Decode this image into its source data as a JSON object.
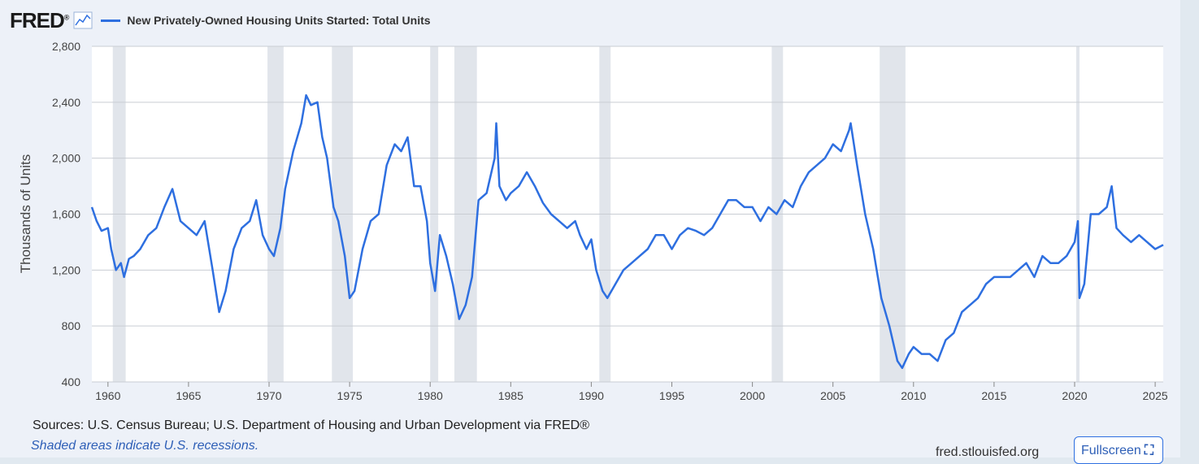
{
  "header": {
    "logo": "FRED",
    "logo_mark": "®",
    "series_title": "New Privately-Owned Housing Units Started: Total Units"
  },
  "footer": {
    "sources": "Sources: U.S. Census Bureau; U.S. Department of Housing and Urban Development via FRED®",
    "recession_note": "Shaded areas indicate U.S. recessions.",
    "url": "fred.stlouisfed.org",
    "fullscreen_label": "Fullscreen"
  },
  "colors": {
    "line": "#2e6fe0",
    "recession": "#e1e5eb",
    "grid": "#c9cdd3",
    "plot_bg": "#ffffff"
  },
  "chart_data": {
    "type": "line",
    "title": "New Privately-Owned Housing Units Started: Total Units",
    "ylabel": "Thousands of Units",
    "xlabel": "",
    "xlim": [
      1959.0,
      2025.5
    ],
    "ylim": [
      400,
      2800
    ],
    "yticks": [
      400,
      800,
      1200,
      1600,
      2000,
      2400,
      2800
    ],
    "ytick_labels": [
      "400",
      "800",
      "1,200",
      "1,600",
      "2,000",
      "2,400",
      "2,800"
    ],
    "xticks": [
      1960,
      1965,
      1970,
      1975,
      1980,
      1985,
      1990,
      1995,
      2000,
      2005,
      2010,
      2015,
      2020,
      2025
    ],
    "recessions": [
      [
        1960.3,
        1961.1
      ],
      [
        1969.9,
        1970.9
      ],
      [
        1973.9,
        1975.2
      ],
      [
        1980.0,
        1980.5
      ],
      [
        1981.5,
        1982.9
      ],
      [
        1990.5,
        1991.2
      ],
      [
        2001.2,
        2001.9
      ],
      [
        2007.9,
        2009.5
      ],
      [
        2020.1,
        2020.3
      ]
    ],
    "series": [
      {
        "name": "New Privately-Owned Housing Units Started: Total Units",
        "x": [
          1959.0,
          1959.3,
          1959.6,
          1960.0,
          1960.2,
          1960.5,
          1960.8,
          1961.0,
          1961.3,
          1961.6,
          1962.0,
          1962.5,
          1963.0,
          1963.5,
          1964.0,
          1964.5,
          1965.0,
          1965.5,
          1966.0,
          1966.5,
          1966.9,
          1967.3,
          1967.8,
          1968.3,
          1968.8,
          1969.2,
          1969.6,
          1970.0,
          1970.3,
          1970.7,
          1971.0,
          1971.5,
          1972.0,
          1972.3,
          1972.6,
          1973.0,
          1973.3,
          1973.6,
          1974.0,
          1974.3,
          1974.7,
          1975.0,
          1975.3,
          1975.8,
          1976.3,
          1976.8,
          1977.3,
          1977.8,
          1978.2,
          1978.6,
          1979.0,
          1979.4,
          1979.8,
          1980.0,
          1980.3,
          1980.6,
          1981.0,
          1981.4,
          1981.8,
          1982.2,
          1982.6,
          1983.0,
          1983.5,
          1984.0,
          1984.1,
          1984.3,
          1984.7,
          1985.0,
          1985.5,
          1986.0,
          1986.5,
          1987.0,
          1987.5,
          1988.0,
          1988.5,
          1989.0,
          1989.3,
          1989.7,
          1990.0,
          1990.3,
          1990.7,
          1991.0,
          1991.5,
          1992.0,
          1992.5,
          1993.0,
          1993.5,
          1994.0,
          1994.5,
          1995.0,
          1995.5,
          1996.0,
          1996.5,
          1997.0,
          1997.5,
          1998.0,
          1998.5,
          1999.0,
          1999.5,
          2000.0,
          2000.5,
          2001.0,
          2001.5,
          2002.0,
          2002.5,
          2003.0,
          2003.5,
          2004.0,
          2004.5,
          2005.0,
          2005.5,
          2006.0,
          2006.1,
          2006.5,
          2007.0,
          2007.5,
          2008.0,
          2008.5,
          2009.0,
          2009.3,
          2009.7,
          2010.0,
          2010.5,
          2011.0,
          2011.5,
          2012.0,
          2012.5,
          2013.0,
          2013.5,
          2014.0,
          2014.5,
          2015.0,
          2015.5,
          2016.0,
          2016.5,
          2017.0,
          2017.5,
          2018.0,
          2018.5,
          2019.0,
          2019.5,
          2020.0,
          2020.2,
          2020.3,
          2020.6,
          2021.0,
          2021.5,
          2022.0,
          2022.3,
          2022.6,
          2023.0,
          2023.5,
          2024.0,
          2024.5,
          2025.0,
          2025.5
        ],
        "values": [
          1650,
          1550,
          1480,
          1500,
          1350,
          1200,
          1250,
          1150,
          1280,
          1300,
          1350,
          1450,
          1500,
          1650,
          1780,
          1550,
          1500,
          1450,
          1550,
          1200,
          900,
          1050,
          1350,
          1500,
          1550,
          1700,
          1450,
          1350,
          1300,
          1500,
          1780,
          2050,
          2250,
          2450,
          2380,
          2400,
          2150,
          2000,
          1650,
          1550,
          1300,
          1000,
          1050,
          1350,
          1550,
          1600,
          1950,
          2100,
          2050,
          2150,
          1800,
          1800,
          1550,
          1250,
          1050,
          1450,
          1300,
          1100,
          850,
          950,
          1150,
          1700,
          1750,
          2000,
          2250,
          1800,
          1700,
          1750,
          1800,
          1900,
          1800,
          1680,
          1600,
          1550,
          1500,
          1550,
          1450,
          1350,
          1420,
          1200,
          1050,
          1000,
          1100,
          1200,
          1250,
          1300,
          1350,
          1450,
          1450,
          1350,
          1450,
          1500,
          1480,
          1450,
          1500,
          1600,
          1700,
          1700,
          1650,
          1650,
          1550,
          1650,
          1600,
          1700,
          1650,
          1800,
          1900,
          1950,
          2000,
          2100,
          2050,
          2200,
          2250,
          1950,
          1600,
          1350,
          1000,
          800,
          550,
          500,
          600,
          650,
          600,
          600,
          550,
          700,
          750,
          900,
          950,
          1000,
          1100,
          1150,
          1150,
          1150,
          1200,
          1250,
          1150,
          1300,
          1250,
          1250,
          1300,
          1400,
          1550,
          1000,
          1100,
          1600,
          1600,
          1650,
          1800,
          1500,
          1450,
          1400,
          1450,
          1400,
          1350,
          1380
        ]
      }
    ]
  }
}
